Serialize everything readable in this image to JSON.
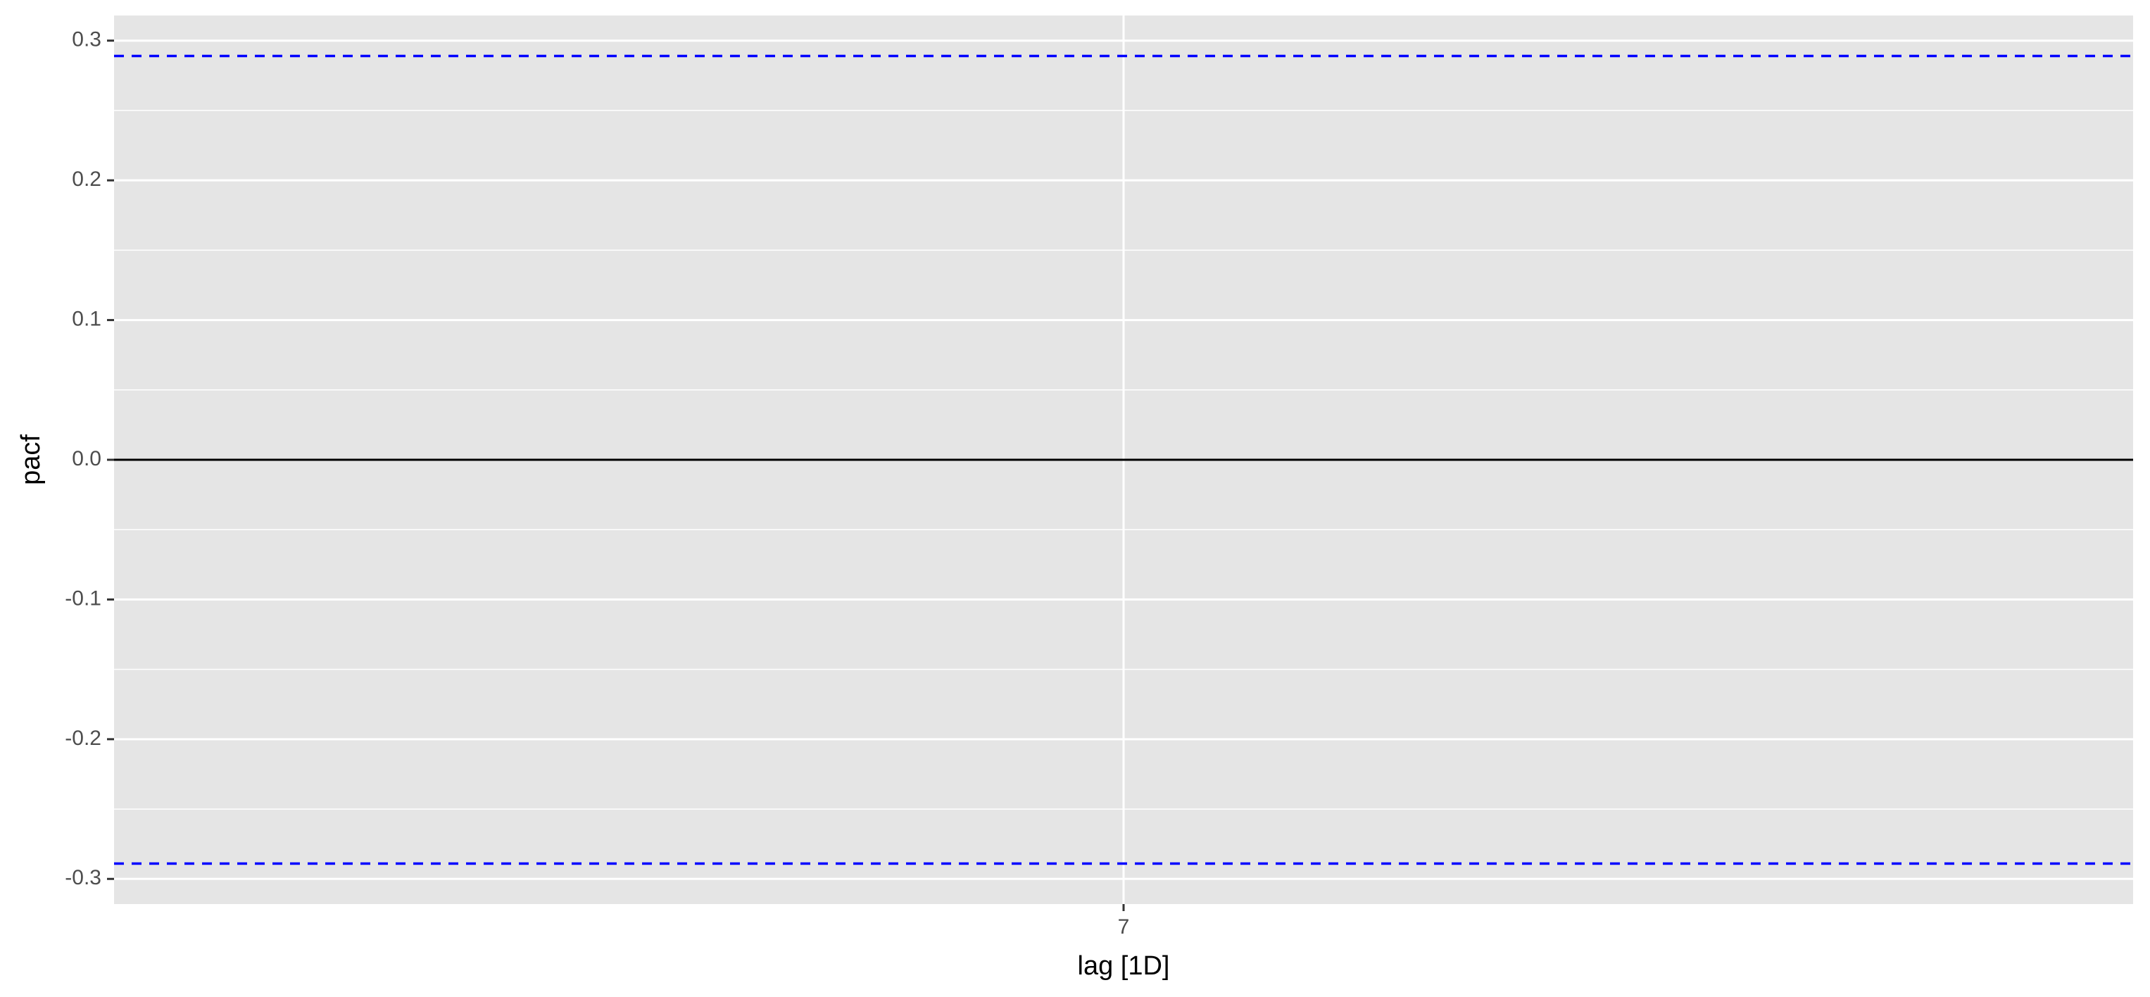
{
  "chart_data": {
    "type": "bar",
    "title": "",
    "xlabel": "lag [1D]",
    "ylabel": "pacf",
    "x_ticks": [
      7
    ],
    "x_tick_labels": [
      "7"
    ],
    "y_ticks": [
      -0.3,
      -0.2,
      -0.1,
      0.0,
      0.1,
      0.2,
      0.3
    ],
    "y_tick_labels": [
      "-0.3",
      "-0.2",
      "-0.1",
      "0.0",
      "0.1",
      "0.2",
      "0.3"
    ],
    "xlim": [
      5.5,
      8.5
    ],
    "ylim": [
      -0.318,
      0.318
    ],
    "series": [
      {
        "x": [
          7
        ],
        "values": [
          0.0
        ]
      }
    ],
    "reference_lines": {
      "zero": 0.0,
      "confidence_upper": 0.289,
      "confidence_lower": -0.289
    },
    "grid": true,
    "legend": "none",
    "colors": {
      "panel_background": "#e5e5e5",
      "grid": "#ffffff",
      "zero_line": "#000000",
      "confidence_line": "#0000ff",
      "bar": "#000000"
    }
  }
}
